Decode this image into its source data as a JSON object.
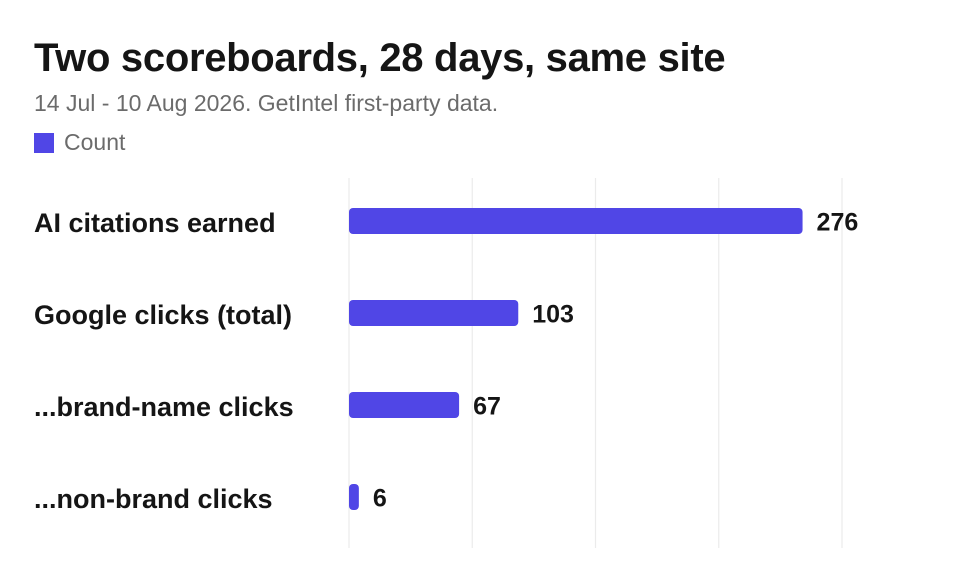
{
  "header": {
    "title": "Two scoreboards, 28 days, same site",
    "subtitle": "14 Jul - 10 Aug 2026. GetIntel first-party data."
  },
  "legend": {
    "label": "Count",
    "color": "#5046e6"
  },
  "colors": {
    "bar": "#5046e6",
    "grid": "#ebebeb",
    "text": "#151515"
  },
  "chart_data": {
    "type": "bar",
    "orientation": "horizontal",
    "categories": [
      "AI citations earned",
      "Google clicks (total)",
      "...brand-name clicks",
      "...non-brand clicks"
    ],
    "series": [
      {
        "name": "Count",
        "values": [
          276,
          103,
          67,
          6
        ]
      }
    ],
    "xlim": [
      0,
      300
    ],
    "grid": true,
    "legend_position": "top-left",
    "data_labels": true
  }
}
